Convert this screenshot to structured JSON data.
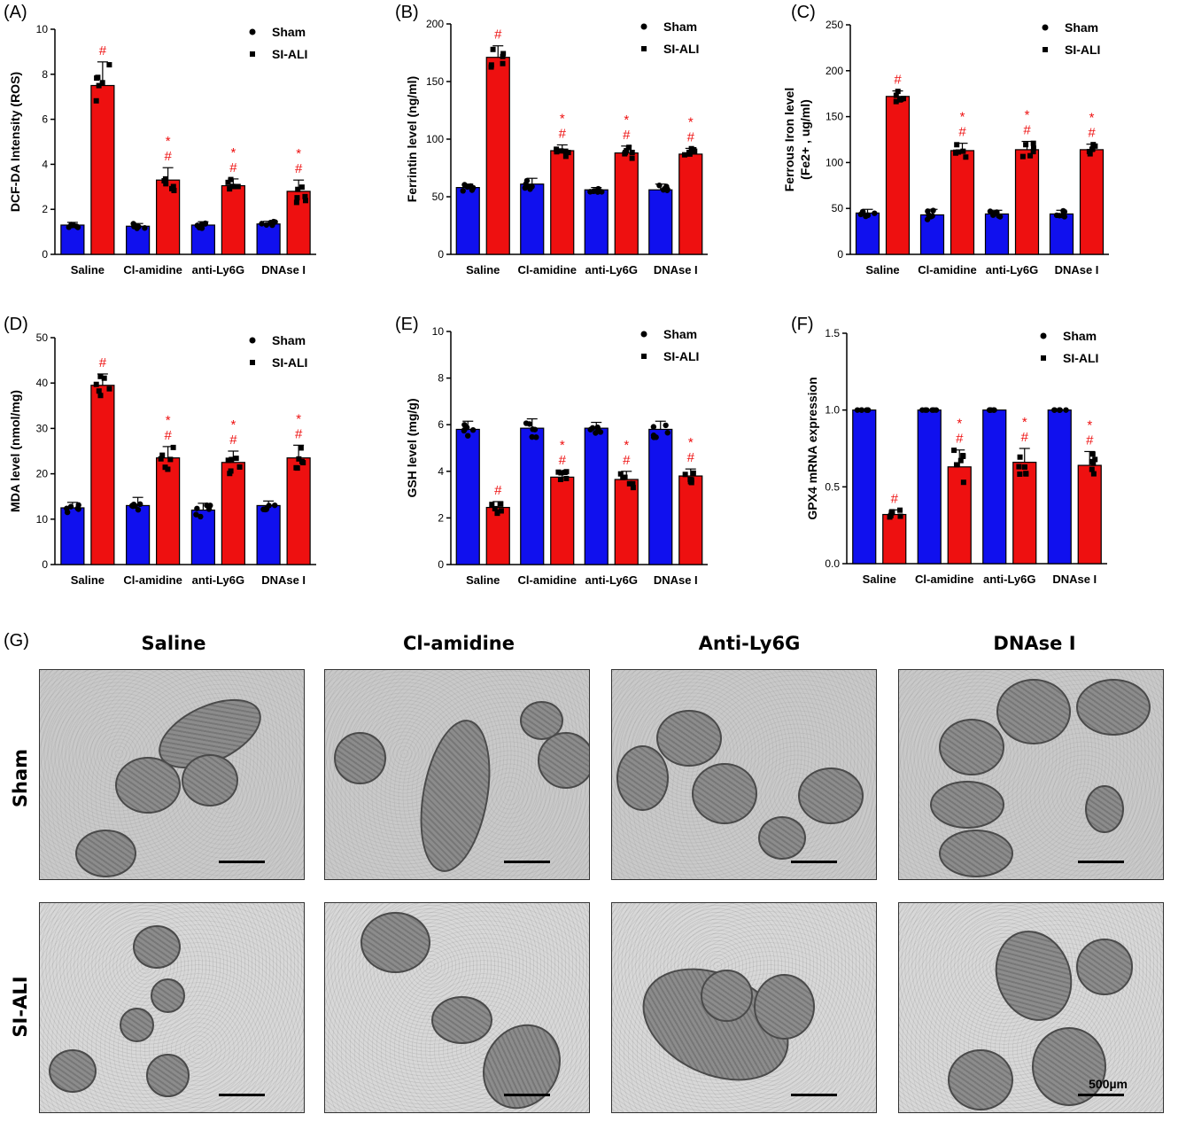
{
  "colors": {
    "sham": "#1010ee",
    "siali": "#ee1010",
    "mark": "#ee1010"
  },
  "chart_data": [
    {
      "panel": "(A)",
      "type": "bar",
      "ylabel": "DCF-DA Intensity (ROS)",
      "ylim": [
        0,
        10
      ],
      "yticks": [
        0,
        2,
        4,
        6,
        8,
        10
      ],
      "categories": [
        "Saline",
        "Cl-amidine",
        "anti-Ly6G",
        "DNAse I"
      ],
      "series": [
        {
          "name": "Sham",
          "values": [
            1.3,
            1.25,
            1.3,
            1.35
          ],
          "errors": [
            0.12,
            0.12,
            0.15,
            0.12
          ]
        },
        {
          "name": "SI-ALI",
          "values": [
            7.5,
            3.3,
            3.05,
            2.8
          ],
          "errors": [
            1.05,
            0.55,
            0.3,
            0.5
          ]
        }
      ],
      "marks": [
        [
          "",
          "#"
        ],
        [
          "",
          "* #"
        ],
        [
          "",
          "* #"
        ],
        [
          "",
          "* #"
        ]
      ],
      "legend": [
        "Sham",
        "SI-ALI"
      ]
    },
    {
      "panel": "(B)",
      "type": "bar",
      "ylabel": "Ferrintin level (ng/ml)",
      "ylim": [
        0,
        200
      ],
      "yticks": [
        0,
        50,
        100,
        150,
        200
      ],
      "categories": [
        "Saline",
        "Cl-amidine",
        "anti-Ly6G",
        "DNAse I"
      ],
      "series": [
        {
          "name": "Sham",
          "values": [
            58,
            61,
            56,
            56
          ],
          "errors": [
            3,
            5,
            2,
            5
          ]
        },
        {
          "name": "SI-ALI",
          "values": [
            171,
            90,
            88,
            87
          ],
          "errors": [
            10,
            5,
            6,
            5
          ]
        }
      ],
      "marks": [
        [
          "",
          "#"
        ],
        [
          "",
          "* #"
        ],
        [
          "",
          "* #"
        ],
        [
          "",
          "* #"
        ]
      ],
      "legend": [
        "Sham",
        "SI-ALI"
      ]
    },
    {
      "panel": "(C)",
      "type": "bar",
      "ylabel": "Ferrous Iron level (Fe2+ , ug/ml)",
      "ylim": [
        0,
        250
      ],
      "yticks": [
        0,
        50,
        100,
        150,
        200,
        250
      ],
      "categories": [
        "Saline",
        "Cl-amidine",
        "anti-Ly6G",
        "DNAse I"
      ],
      "series": [
        {
          "name": "Sham",
          "values": [
            45,
            43,
            44,
            44
          ],
          "errors": [
            4,
            6,
            4,
            4
          ]
        },
        {
          "name": "SI-ALI",
          "values": [
            172,
            113,
            114,
            114
          ],
          "errors": [
            6,
            8,
            9,
            6
          ]
        }
      ],
      "marks": [
        [
          "",
          "#"
        ],
        [
          "",
          "* #"
        ],
        [
          "",
          "* #"
        ],
        [
          "",
          "* #"
        ]
      ],
      "legend": [
        "Sham",
        "SI-ALI"
      ]
    },
    {
      "panel": "(D)",
      "type": "bar",
      "ylabel": "MDA level (nmol/mg)",
      "ylim": [
        0,
        50
      ],
      "yticks": [
        0,
        10,
        20,
        30,
        40,
        50
      ],
      "categories": [
        "Saline",
        "Cl-amidine",
        "anti-Ly6G",
        "DNAse I"
      ],
      "series": [
        {
          "name": "Sham",
          "values": [
            12.5,
            13,
            12,
            13
          ],
          "errors": [
            1.2,
            1.8,
            1.5,
            1.0
          ]
        },
        {
          "name": "SI-ALI",
          "values": [
            39.5,
            23.5,
            22.5,
            23.5
          ],
          "errors": [
            2.5,
            2.5,
            2.5,
            2.8
          ]
        }
      ],
      "marks": [
        [
          "",
          "#"
        ],
        [
          "",
          "* #"
        ],
        [
          "",
          "* #"
        ],
        [
          "",
          "* #"
        ]
      ],
      "legend": [
        "Sham",
        "SI-ALI"
      ]
    },
    {
      "panel": "(E)",
      "type": "bar",
      "ylabel": "GSH level (mg/g)",
      "ylim": [
        0,
        10
      ],
      "yticks": [
        0,
        2,
        4,
        6,
        8,
        10
      ],
      "categories": [
        "Saline",
        "Cl-amidine",
        "anti-Ly6G",
        "DNAse I"
      ],
      "series": [
        {
          "name": "Sham",
          "values": [
            5.8,
            5.85,
            5.85,
            5.8
          ],
          "errors": [
            0.35,
            0.4,
            0.25,
            0.35
          ]
        },
        {
          "name": "SI-ALI",
          "values": [
            2.45,
            3.75,
            3.65,
            3.8
          ],
          "errors": [
            0.25,
            0.25,
            0.35,
            0.3
          ]
        }
      ],
      "marks": [
        [
          "",
          "#"
        ],
        [
          "",
          "* #"
        ],
        [
          "",
          "* #"
        ],
        [
          "",
          "* #"
        ]
      ],
      "legend": [
        "Sham",
        "SI-ALI"
      ]
    },
    {
      "panel": "(F)",
      "type": "bar",
      "ylabel": "GPX4 mRNA expression",
      "ylim": [
        0,
        1.5
      ],
      "yticks": [
        "0.0",
        "0.5",
        "1.0",
        "1.5"
      ],
      "categories": [
        "Saline",
        "Cl-amidine",
        "anti-Ly6G",
        "DNAse I"
      ],
      "series": [
        {
          "name": "Sham",
          "values": [
            1.0,
            1.0,
            1.0,
            1.0
          ],
          "errors": [
            0,
            0,
            0,
            0
          ]
        },
        {
          "name": "SI-ALI",
          "values": [
            0.32,
            0.63,
            0.66,
            0.64
          ],
          "errors": [
            0.03,
            0.11,
            0.09,
            0.09
          ]
        }
      ],
      "marks": [
        [
          "",
          "#"
        ],
        [
          "",
          "* #"
        ],
        [
          "",
          "* #"
        ],
        [
          "",
          "* #"
        ]
      ],
      "legend": [
        "Sham",
        "SI-ALI"
      ]
    }
  ],
  "em_panel": {
    "letter": "(G)",
    "columns": [
      "Saline",
      "Cl-amidine",
      "Anti-Ly6G",
      "DNAse I"
    ],
    "rows": [
      "Sham",
      "SI-ALI"
    ],
    "scale_label": "500µm"
  }
}
